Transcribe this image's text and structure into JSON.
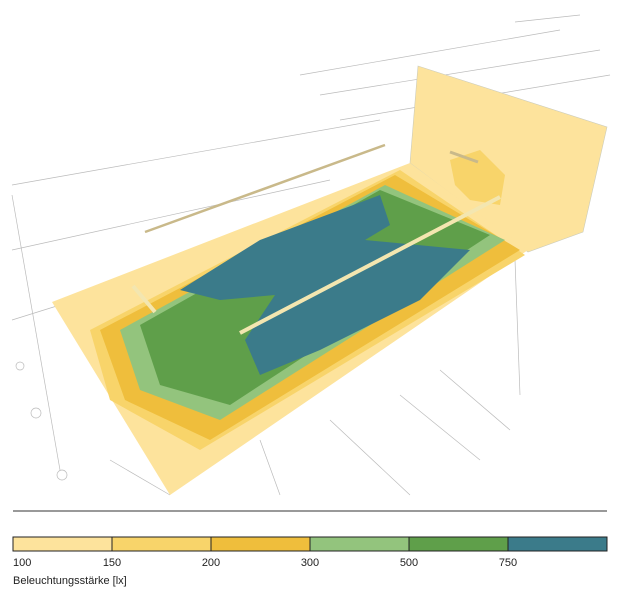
{
  "legend": {
    "title": "Beleuchtungsstärke [lx]",
    "ticks": [
      "100",
      "150",
      "200",
      "300",
      "500",
      "750"
    ],
    "colors": [
      "#fde39c",
      "#f8d46a",
      "#efbe3c",
      "#93c47d",
      "#5f9f4a",
      "#3b7b8a"
    ]
  }
}
